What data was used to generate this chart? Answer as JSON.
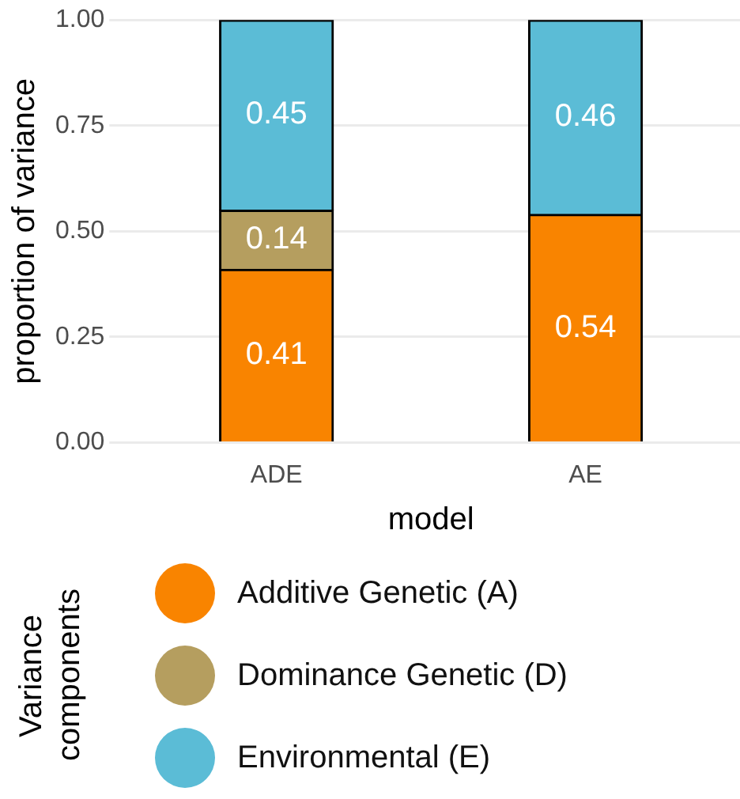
{
  "chart_data": {
    "type": "bar",
    "stacked": true,
    "xlabel": "model",
    "ylabel": "proportion of variance",
    "legend_title": "Variance components",
    "categories": [
      "ADE",
      "AE"
    ],
    "series": [
      {
        "name": "Additive Genetic (A)",
        "color": "#f98400",
        "values": [
          0.41,
          0.54
        ]
      },
      {
        "name": "Dominance Genetic (D)",
        "color": "#b59e5f",
        "values": [
          0.14,
          null
        ]
      },
      {
        "name": "Environmental (E)",
        "color": "#5bbcd6",
        "values": [
          0.45,
          0.46
        ]
      }
    ],
    "ylim": [
      0,
      1
    ],
    "yticks": [
      {
        "value": 0,
        "label": "0.00"
      },
      {
        "value": 0.25,
        "label": "0.25"
      },
      {
        "value": 0.5,
        "label": "0.50"
      },
      {
        "value": 0.75,
        "label": "0.75"
      },
      {
        "value": 1,
        "label": "1.00"
      }
    ],
    "grid": "y",
    "legend": "bottom",
    "data_labels": true
  }
}
